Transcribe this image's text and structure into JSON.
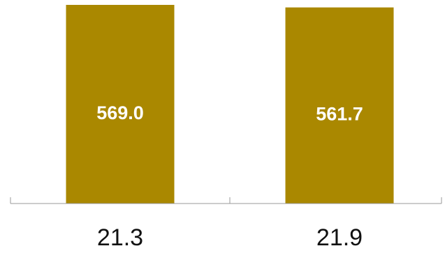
{
  "chart_data": {
    "type": "bar",
    "categories": [
      "21.3",
      "21.9"
    ],
    "values": [
      569.0,
      561.7
    ],
    "value_labels": [
      "569.0",
      "561.7"
    ],
    "title": "",
    "xlabel": "",
    "ylabel": "",
    "bar_color": "#aa8800",
    "axis_color": "#999999",
    "label_color": "#ffffff",
    "grid": false,
    "legend": false
  }
}
